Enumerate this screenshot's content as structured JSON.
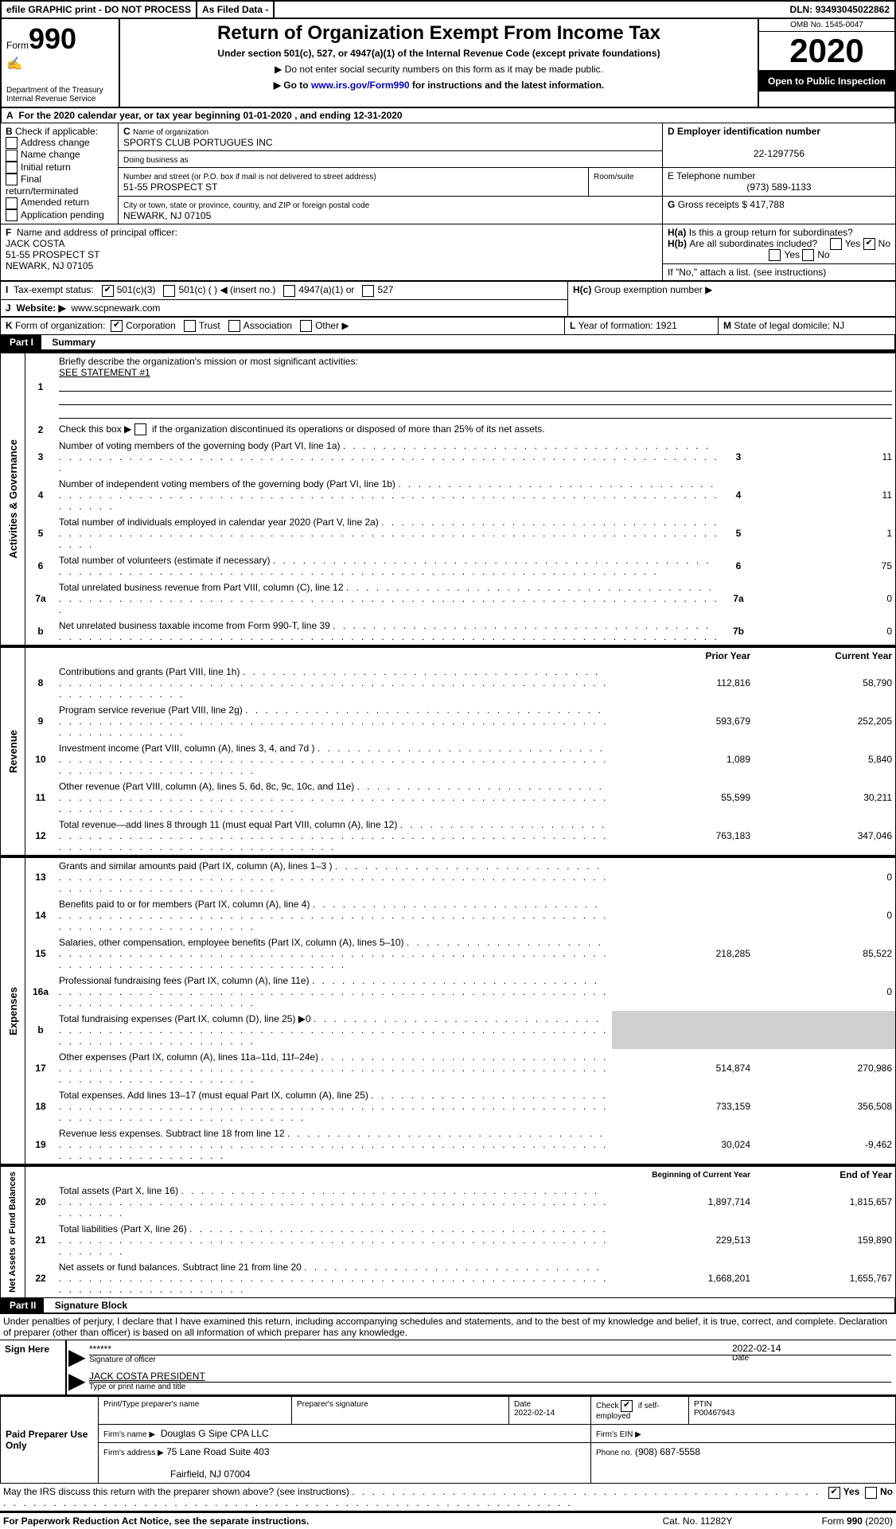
{
  "top_strip": {
    "efile": "efile GRAPHIC print - DO NOT PROCESS",
    "asfiled": "As Filed Data -",
    "dln_label": "DLN:",
    "dln": "93493045022862"
  },
  "header": {
    "form_prefix": "Form",
    "form_number": "990",
    "dept": "Department of the Treasury",
    "irs": "Internal Revenue Service",
    "title": "Return of Organization Exempt From Income Tax",
    "subtitle": "Under section 501(c), 527, or 4947(a)(1) of the Internal Revenue Code (except private foundations)",
    "note1": "▶ Do not enter social security numbers on this form as it may be made public.",
    "note2_prefix": "▶ Go to ",
    "note2_link": "www.irs.gov/Form990",
    "note2_suffix": " for instructions and the latest information.",
    "omb": "OMB No. 1545-0047",
    "year": "2020",
    "open_public": "Open to Public Inspection"
  },
  "lineA": {
    "prefix": "A",
    "text": "For the 2020 calendar year, or tax year beginning ",
    "begin": "01-01-2020",
    "mid": " , and ending ",
    "end": "12-31-2020"
  },
  "lineB": {
    "label": "B",
    "check_label": "Check if applicable:",
    "options": [
      "Address change",
      "Name change",
      "Initial return",
      "Final return/terminated",
      "Amended return",
      "Application pending"
    ]
  },
  "lineC": {
    "label": "C",
    "name_label": "Name of organization",
    "name": "SPORTS CLUB PORTUGUES INC",
    "dba_label": "Doing business as",
    "street_label": "Number and street (or P.O. box if mail is not delivered to street address)",
    "street": "51-55 PROSPECT ST",
    "room_label": "Room/suite",
    "city_label": "City or town, state or province, country, and ZIP or foreign postal code",
    "city": "NEWARK, NJ  07105"
  },
  "lineD": {
    "label": "D Employer identification number",
    "value": "22-1297756"
  },
  "lineE": {
    "label": "E Telephone number",
    "value": "(973) 589-1133"
  },
  "lineG": {
    "label": "G",
    "text": "Gross receipts $",
    "value": "417,788"
  },
  "lineF": {
    "label": "F",
    "text": "Name and address of principal officer:",
    "name": "JACK COSTA",
    "street": "51-55 PROSPECT ST",
    "city": "NEWARK, NJ  07105"
  },
  "lineH": {
    "ha_label": "H(a)",
    "ha_text": "Is this a group return for subordinates?",
    "ha_yes": "Yes",
    "ha_no": "No",
    "ha_checked": "No",
    "hb_label": "H(b)",
    "hb_text": "Are all subordinates included?",
    "hb_yes": "Yes",
    "hb_no": "No",
    "hb_note": "If \"No,\" attach a list. (see instructions)",
    "hc_label": "H(c)",
    "hc_text": "Group exemption number ▶"
  },
  "lineI": {
    "label": "I",
    "text": "Tax-exempt status:",
    "opts": [
      "501(c)(3)",
      "501(c) (   ) ◀ (insert no.)",
      "4947(a)(1) or",
      "527"
    ],
    "checked": 0
  },
  "lineJ": {
    "label": "J",
    "text": "Website: ▶",
    "url": "www.scpnewark.com"
  },
  "lineK": {
    "label": "K",
    "text": "Form of organization:",
    "opts": [
      "Corporation",
      "Trust",
      "Association",
      "Other ▶"
    ],
    "checked": 0
  },
  "lineL": {
    "label": "L",
    "text": "Year of formation:",
    "value": "1921"
  },
  "lineM": {
    "label": "M",
    "text": "State of legal domicile:",
    "value": "NJ"
  },
  "partI": {
    "label": "Part I",
    "title": "Summary",
    "q1_num": "1",
    "q1": "Briefly describe the organization's mission or most significant activities:",
    "q1_answer": "SEE STATEMENT #1",
    "q2_num": "2",
    "q2": "Check this box ▶ ",
    "q2b": " if the organization discontinued its operations or disposed of more than 25% of its net assets."
  },
  "activities_rows": [
    {
      "n": "3",
      "label": "Number of voting members of the governing body (Part VI, line 1a)",
      "cell": "3",
      "val": "11"
    },
    {
      "n": "4",
      "label": "Number of independent voting members of the governing body (Part VI, line 1b)",
      "cell": "4",
      "val": "11"
    },
    {
      "n": "5",
      "label": "Total number of individuals employed in calendar year 2020 (Part V, line 2a)",
      "cell": "5",
      "val": "1"
    },
    {
      "n": "6",
      "label": "Total number of volunteers (estimate if necessary)",
      "cell": "6",
      "val": "75"
    },
    {
      "n": "7a",
      "label": "Total unrelated business revenue from Part VIII, column (C), line 12",
      "cell": "7a",
      "val": "0"
    },
    {
      "n": "b",
      "label": "Net unrelated business taxable income from Form 990-T, line 39",
      "cell": "7b",
      "val": "0"
    }
  ],
  "revenue_header": {
    "prior": "Prior Year",
    "current": "Current Year"
  },
  "revenue_rows": [
    {
      "n": "8",
      "label": "Contributions and grants (Part VIII, line 1h)",
      "prior": "112,816",
      "current": "58,790"
    },
    {
      "n": "9",
      "label": "Program service revenue (Part VIII, line 2g)",
      "prior": "593,679",
      "current": "252,205"
    },
    {
      "n": "10",
      "label": "Investment income (Part VIII, column (A), lines 3, 4, and 7d )",
      "prior": "1,089",
      "current": "5,840"
    },
    {
      "n": "11",
      "label": "Other revenue (Part VIII, column (A), lines 5, 6d, 8c, 9c, 10c, and 11e)",
      "prior": "55,599",
      "current": "30,211"
    },
    {
      "n": "12",
      "label": "Total revenue—add lines 8 through 11 (must equal Part VIII, column (A), line 12)",
      "prior": "763,183",
      "current": "347,046"
    }
  ],
  "expenses_rows": [
    {
      "n": "13",
      "label": "Grants and similar amounts paid (Part IX, column (A), lines 1–3 )",
      "prior": "",
      "current": "0"
    },
    {
      "n": "14",
      "label": "Benefits paid to or for members (Part IX, column (A), line 4)",
      "prior": "",
      "current": "0"
    },
    {
      "n": "15",
      "label": "Salaries, other compensation, employee benefits (Part IX, column (A), lines 5–10)",
      "prior": "218,285",
      "current": "85,522"
    },
    {
      "n": "16a",
      "label": "Professional fundraising fees (Part IX, column (A), line 11e)",
      "prior": "",
      "current": "0"
    },
    {
      "n": "b",
      "label": "Total fundraising expenses (Part IX, column (D), line 25) ▶0",
      "prior": "SHADE",
      "current": "SHADE"
    },
    {
      "n": "17",
      "label": "Other expenses (Part IX, column (A), lines 11a–11d, 11f–24e)",
      "prior": "514,874",
      "current": "270,986"
    },
    {
      "n": "18",
      "label": "Total expenses. Add lines 13–17 (must equal Part IX, column (A), line 25)",
      "prior": "733,159",
      "current": "356,508"
    },
    {
      "n": "19",
      "label": "Revenue less expenses. Subtract line 18 from line 12",
      "prior": "30,024",
      "current": "-9,462"
    }
  ],
  "netassets_header": {
    "prior": "Beginning of Current Year",
    "current": "End of Year"
  },
  "netassets_rows": [
    {
      "n": "20",
      "label": "Total assets (Part X, line 16)",
      "prior": "1,897,714",
      "current": "1,815,657"
    },
    {
      "n": "21",
      "label": "Total liabilities (Part X, line 26)",
      "prior": "229,513",
      "current": "159,890"
    },
    {
      "n": "22",
      "label": "Net assets or fund balances. Subtract line 21 from line 20",
      "prior": "1,668,201",
      "current": "1,655,767"
    }
  ],
  "vtabs": {
    "activities": "Activities & Governance",
    "revenue": "Revenue",
    "expenses": "Expenses",
    "netassets": "Net Assets or Fund Balances"
  },
  "partII": {
    "label": "Part II",
    "title": "Signature Block",
    "declaration": "Under penalties of perjury, I declare that I have examined this return, including accompanying schedules and statements, and to the best of my knowledge and belief, it is true, correct, and complete. Declaration of preparer (other than officer) is based on all information of which preparer has any knowledge."
  },
  "sign_here": {
    "label": "Sign Here",
    "sig_stars": "******",
    "sig_label": "Signature of officer",
    "date": "2022-02-14",
    "date_label": "Date",
    "name": "JACK COSTA PRESIDENT",
    "name_label": "Type or print name and title"
  },
  "paid_preparer": {
    "label": "Paid Preparer Use Only",
    "name_label": "Print/Type preparer's name",
    "sig_label": "Preparer's signature",
    "date_label": "Date",
    "date": "2022-02-14",
    "check_label": "Check",
    "selfemp": "if self-employed",
    "ptin_label": "PTIN",
    "ptin": "P00467943",
    "firm_name_label": "Firm's name   ▶",
    "firm_name": "Douglas G Sipe CPA LLC",
    "firm_ein_label": "Firm's EIN ▶",
    "firm_addr_label": "Firm's address ▶",
    "firm_addr1": "75 Lane Road Suite 403",
    "firm_addr2": "Fairfield, NJ  07004",
    "phone_label": "Phone no.",
    "phone": "(908) 687-5558"
  },
  "footer": {
    "may_irs": "May the IRS discuss this return with the preparer shown above? (see instructions)",
    "yes": "Yes",
    "no": "No",
    "paperwork": "For Paperwork Reduction Act Notice, see the separate instructions.",
    "cat": "Cat. No. 11282Y",
    "form": "Form ",
    "form_num": "990",
    "form_year": " (2020)"
  }
}
